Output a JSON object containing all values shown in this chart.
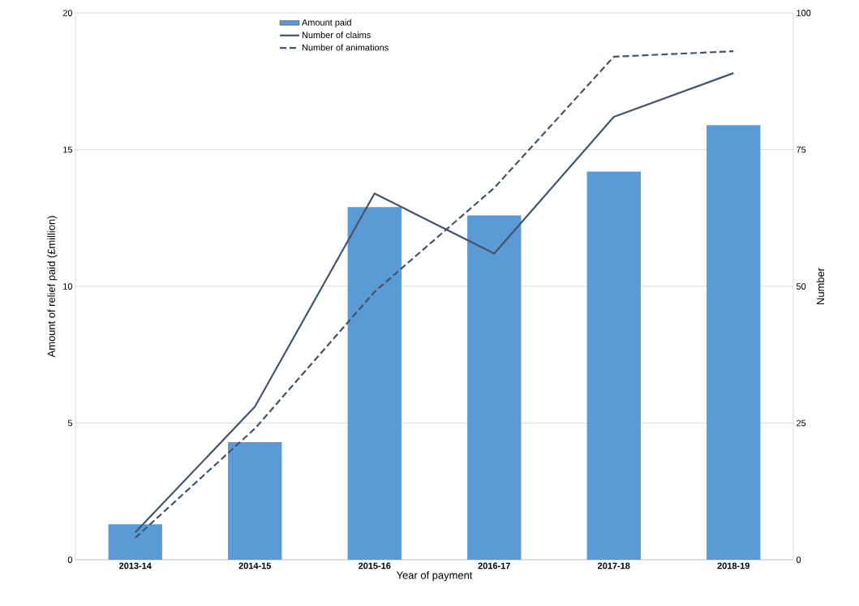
{
  "chart_data": {
    "type": "bar",
    "xlabel": "Year of payment",
    "ylabel": "Amount of relief paid (£million)",
    "y2label": "Number",
    "categories": [
      "2013-14",
      "2014-15",
      "2015-16",
      "2016-17",
      "2017-18",
      "2018-19"
    ],
    "series": [
      {
        "name": "Amount paid",
        "color": "#5b9bd5",
        "values": [
          1.3,
          4.3,
          12.9,
          12.6,
          14.2,
          15.9
        ]
      },
      {
        "name": "Number of claims",
        "type": "line",
        "axis": "y2",
        "line_style": "solid",
        "color": "#44546a",
        "values": [
          5,
          28,
          67,
          56,
          81,
          89
        ]
      },
      {
        "name": "Number of animations",
        "type": "line",
        "axis": "y2",
        "line_style": "dashed",
        "color": "#44546a",
        "values": [
          4,
          24,
          49,
          68,
          92,
          93
        ]
      }
    ],
    "ylim": [
      0,
      20
    ],
    "yticks": [
      0,
      5,
      10,
      15,
      20
    ],
    "y2lim": [
      0,
      100
    ],
    "y2ticks": [
      0,
      25,
      50,
      75,
      100
    ],
    "grid": "y",
    "legend": "top"
  }
}
